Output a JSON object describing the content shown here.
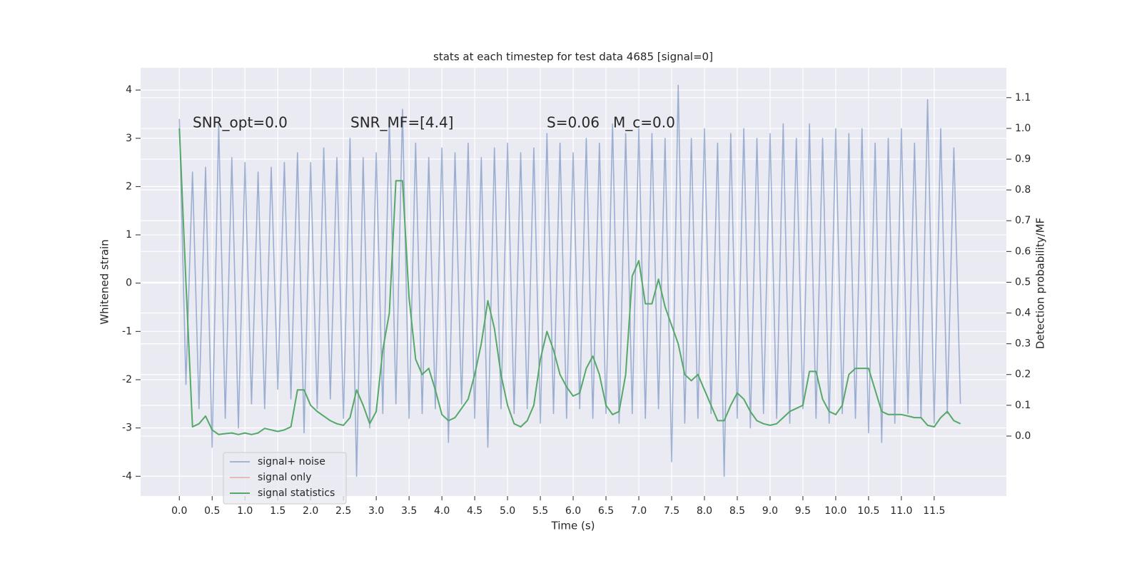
{
  "chart_data": {
    "type": "line",
    "title": "stats at each timestep for test data 4685 [signal=0]",
    "xlabel": "Time (s)",
    "ylabel": "Whitened strain",
    "y2label": "Detection probability/MF",
    "annotations": [
      "SNR_opt=0.0",
      "SNR_MF=[4.4]",
      "S=0.06",
      "M_c=0.0"
    ],
    "grid": true,
    "legend": "lower left",
    "xlim": [
      -0.59,
      12.6
    ],
    "ylim": [
      -4.41,
      4.46
    ],
    "y2lim": [
      -0.195,
      1.197
    ],
    "xticks": [
      {
        "value": 0,
        "label": "0.0"
      },
      0.5,
      {
        "value": 1,
        "label": "1.0"
      },
      1.5,
      {
        "value": 2,
        "label": "2.0"
      },
      2.5,
      {
        "value": 3,
        "label": "3.0"
      },
      3.5,
      {
        "value": 4,
        "label": "4.0"
      },
      4.5,
      {
        "value": 5,
        "label": "5.0"
      },
      5.5,
      {
        "value": 6,
        "label": "6.0"
      },
      6.5,
      {
        "value": 7,
        "label": "7.0"
      },
      7.5,
      {
        "value": 8,
        "label": "8.0"
      },
      8.5,
      {
        "value": 9,
        "label": "9.0"
      },
      9.5,
      {
        "value": 10,
        "label": "10.0"
      },
      10.5,
      {
        "value": 11,
        "label": "11.0"
      },
      11.5
    ],
    "yticks": [
      -4,
      -3,
      -2,
      -1,
      0,
      1,
      2,
      3,
      4
    ],
    "y2ticks": [
      {
        "value": 0,
        "label": "0.0"
      },
      0.1,
      0.2,
      0.3,
      0.4,
      0.5,
      0.6,
      0.7,
      0.8,
      0.9,
      {
        "value": 1,
        "label": "1.0"
      },
      1.1
    ],
    "x": [
      0,
      0.1,
      0.2,
      0.3,
      0.4,
      0.5,
      0.6,
      0.7,
      0.8,
      0.9,
      1,
      1.1,
      1.2,
      1.3,
      1.4,
      1.5,
      1.6,
      1.7,
      1.8,
      1.9,
      2,
      2.1,
      2.2,
      2.3,
      2.4,
      2.5,
      2.6,
      2.7,
      2.8,
      2.9,
      3,
      3.1,
      3.2,
      3.3,
      3.4,
      3.5,
      3.6,
      3.7,
      3.8,
      3.9,
      4,
      4.1,
      4.2,
      4.3,
      4.4,
      4.5,
      4.6,
      4.7,
      4.8,
      4.9,
      5,
      5.1,
      5.2,
      5.3,
      5.4,
      5.5,
      5.6,
      5.7,
      5.8,
      5.9,
      6,
      6.1,
      6.2,
      6.3,
      6.4,
      6.5,
      6.6,
      6.7,
      6.8,
      6.9,
      7,
      7.1,
      7.2,
      7.3,
      7.4,
      7.5,
      7.6,
      7.7,
      7.8,
      7.9,
      8,
      8.1,
      8.2,
      8.3,
      8.4,
      8.5,
      8.6,
      8.7,
      8.8,
      8.9,
      9,
      9.1,
      9.2,
      9.3,
      9.4,
      9.5,
      9.6,
      9.7,
      9.8,
      9.9,
      10,
      10.1,
      10.2,
      10.3,
      10.4,
      10.5,
      10.6,
      10.7,
      10.8,
      10.9,
      11,
      11.1,
      11.2,
      11.3,
      11.4,
      11.5,
      11.6,
      11.7,
      11.8,
      11.9
    ],
    "series": [
      {
        "name": "signal+ noise",
        "color": "#4c72b0",
        "values": [
          3.4,
          -2.1,
          2.3,
          -2.6,
          2.4,
          -3.4,
          3.3,
          -2.8,
          2.6,
          -3.0,
          2.5,
          -2.5,
          2.3,
          -2.6,
          2.4,
          -2.2,
          2.5,
          -2.4,
          2.7,
          -3.1,
          2.5,
          -2.6,
          2.8,
          -2.4,
          2.6,
          -2.8,
          3.0,
          -4.0,
          2.6,
          -3.0,
          2.7,
          -2.7,
          3.4,
          -2.5,
          3.6,
          -2.8,
          2.9,
          -2.7,
          2.6,
          -2.6,
          2.8,
          -3.3,
          2.7,
          -2.5,
          2.9,
          -2.8,
          2.6,
          -3.4,
          2.8,
          -2.6,
          2.9,
          -2.7,
          2.7,
          -2.6,
          2.8,
          -2.9,
          3.1,
          -2.7,
          2.9,
          -2.8,
          2.7,
          -2.6,
          3.0,
          -2.8,
          2.9,
          -2.7,
          3.3,
          -2.9,
          3.1,
          -2.7,
          3.2,
          -2.8,
          3.1,
          -2.6,
          3.0,
          -3.7,
          4.1,
          -2.9,
          3.0,
          -2.8,
          3.2,
          -2.7,
          2.9,
          -4.0,
          3.1,
          -2.8,
          3.2,
          -3.0,
          3.0,
          -2.7,
          3.1,
          -2.8,
          3.3,
          -2.9,
          3.0,
          -2.6,
          3.3,
          -2.8,
          3.0,
          -2.9,
          3.2,
          -2.7,
          3.1,
          -2.8,
          3.2,
          -3.1,
          2.9,
          -3.3,
          3.0,
          -2.9,
          3.2,
          -2.7,
          2.9,
          -2.8,
          3.8,
          -2.9,
          3.2,
          -2.7,
          2.8,
          -2.5
        ]
      },
      {
        "name": "signal only",
        "color": "#dd8452"
      },
      {
        "name": "signal statistics",
        "color": "#55a868",
        "axis": "y2",
        "values": [
          1.0,
          0.5,
          0.03,
          0.04,
          0.065,
          0.02,
          0.005,
          0.008,
          0.01,
          0.005,
          0.01,
          0.005,
          0.01,
          0.025,
          0.02,
          0.015,
          0.02,
          0.03,
          0.15,
          0.15,
          0.1,
          0.08,
          0.065,
          0.05,
          0.04,
          0.035,
          0.06,
          0.15,
          0.1,
          0.04,
          0.08,
          0.28,
          0.4,
          0.83,
          0.83,
          0.45,
          0.25,
          0.2,
          0.22,
          0.15,
          0.07,
          0.05,
          0.06,
          0.09,
          0.12,
          0.2,
          0.3,
          0.44,
          0.35,
          0.2,
          0.1,
          0.04,
          0.03,
          0.05,
          0.1,
          0.25,
          0.34,
          0.28,
          0.2,
          0.16,
          0.13,
          0.14,
          0.22,
          0.26,
          0.2,
          0.1,
          0.07,
          0.08,
          0.2,
          0.52,
          0.57,
          0.43,
          0.43,
          0.51,
          0.42,
          0.36,
          0.3,
          0.2,
          0.18,
          0.2,
          0.15,
          0.1,
          0.05,
          0.05,
          0.1,
          0.14,
          0.12,
          0.08,
          0.05,
          0.04,
          0.035,
          0.04,
          0.06,
          0.08,
          0.09,
          0.1,
          0.21,
          0.21,
          0.12,
          0.08,
          0.07,
          0.1,
          0.2,
          0.22,
          0.22,
          0.22,
          0.15,
          0.08,
          0.07,
          0.07,
          0.07,
          0.065,
          0.06,
          0.06,
          0.035,
          0.03,
          0.06,
          0.08,
          0.05,
          0.04
        ]
      }
    ]
  }
}
